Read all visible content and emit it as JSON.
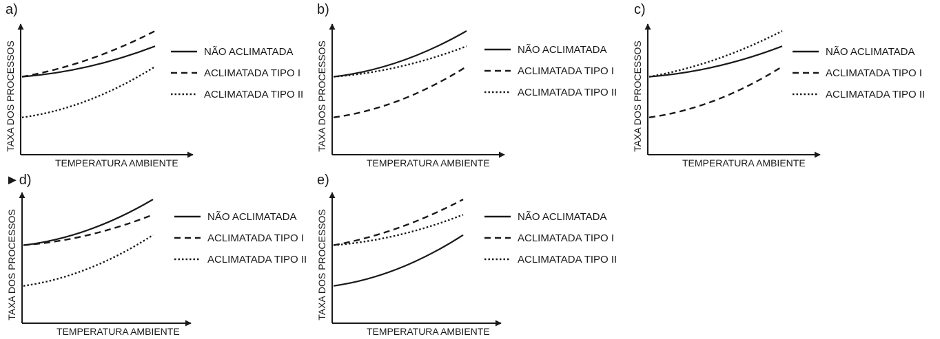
{
  "charts": [
    {
      "id": "a",
      "label": "a)",
      "xlabel": "TEMPERATURA AMBIENTE",
      "ylabel": "TAXA DOS PROCESSOS",
      "chart_data": {
        "type": "line",
        "series": [
          {
            "name": "NÃO ACLIMATADA",
            "style": "solid",
            "x": [
              0,
              0.5,
              1
            ],
            "y": [
              0.55,
              0.65,
              0.85
            ]
          },
          {
            "name": "ACLIMATADA TIPO I",
            "style": "dashed",
            "x": [
              0,
              0.5,
              1
            ],
            "y": [
              0.55,
              0.72,
              1.0
            ]
          },
          {
            "name": "ACLIMATADA TIPO II",
            "style": "dotted",
            "x": [
              0,
              0.5,
              1
            ],
            "y": [
              0.15,
              0.32,
              0.65
            ]
          }
        ]
      }
    },
    {
      "id": "b",
      "label": "b)",
      "xlabel": "TEMPERATURA AMBIENTE",
      "ylabel": "TAXA DOS PROCESSOS",
      "chart_data": {
        "type": "line",
        "series": [
          {
            "name": "NÃO ACLIMATADA",
            "style": "solid",
            "x": [
              0,
              0.5,
              1
            ],
            "y": [
              0.55,
              0.7,
              1.0
            ]
          },
          {
            "name": "ACLIMATADA TIPO I",
            "style": "dashed",
            "x": [
              0,
              0.5,
              1
            ],
            "y": [
              0.15,
              0.32,
              0.65
            ]
          },
          {
            "name": "ACLIMATADA TIPO II",
            "style": "dotted",
            "x": [
              0,
              0.5,
              1
            ],
            "y": [
              0.55,
              0.65,
              0.85
            ]
          }
        ]
      }
    },
    {
      "id": "c",
      "label": "c)",
      "xlabel": "TEMPERATURA AMBIENTE",
      "ylabel": "TAXA DOS PROCESSOS",
      "chart_data": {
        "type": "line",
        "series": [
          {
            "name": "NÃO ACLIMATADA",
            "style": "solid",
            "x": [
              0,
              0.5,
              1
            ],
            "y": [
              0.55,
              0.65,
              0.85
            ]
          },
          {
            "name": "ACLIMATADA TIPO I",
            "style": "dashed",
            "x": [
              0,
              0.5,
              1
            ],
            "y": [
              0.15,
              0.32,
              0.65
            ]
          },
          {
            "name": "ACLIMATADA TIPO II",
            "style": "dotted",
            "x": [
              0,
              0.5,
              1
            ],
            "y": [
              0.55,
              0.72,
              1.0
            ]
          }
        ]
      }
    },
    {
      "id": "d",
      "label": "d)",
      "marker": "►",
      "xlabel": "TEMPERATURA AMBIENTE",
      "ylabel": "TAXA DOS PROCESSOS",
      "chart_data": {
        "type": "line",
        "series": [
          {
            "name": "NÃO ACLIMATADA",
            "style": "solid",
            "x": [
              0,
              0.5,
              1
            ],
            "y": [
              0.55,
              0.7,
              1.0
            ]
          },
          {
            "name": "ACLIMATADA TIPO I",
            "style": "dashed",
            "x": [
              0,
              0.5,
              1
            ],
            "y": [
              0.55,
              0.65,
              0.85
            ]
          },
          {
            "name": "ACLIMATADA TIPO II",
            "style": "dotted",
            "x": [
              0,
              0.5,
              1
            ],
            "y": [
              0.15,
              0.32,
              0.65
            ]
          }
        ]
      }
    },
    {
      "id": "e",
      "label": "e)",
      "xlabel": "TEMPERATURA AMBIENTE",
      "ylabel": "TAXA DOS PROCESSOS",
      "chart_data": {
        "type": "line",
        "series": [
          {
            "name": "NÃO ACLIMATADA",
            "style": "solid",
            "x": [
              0,
              0.5,
              1
            ],
            "y": [
              0.15,
              0.32,
              0.65
            ]
          },
          {
            "name": "ACLIMATADA TIPO I",
            "style": "dashed",
            "x": [
              0,
              0.5,
              1
            ],
            "y": [
              0.55,
              0.72,
              1.0
            ]
          },
          {
            "name": "ACLIMATADA TIPO II",
            "style": "dotted",
            "x": [
              0,
              0.5,
              1
            ],
            "y": [
              0.55,
              0.65,
              0.85
            ]
          }
        ]
      }
    }
  ]
}
